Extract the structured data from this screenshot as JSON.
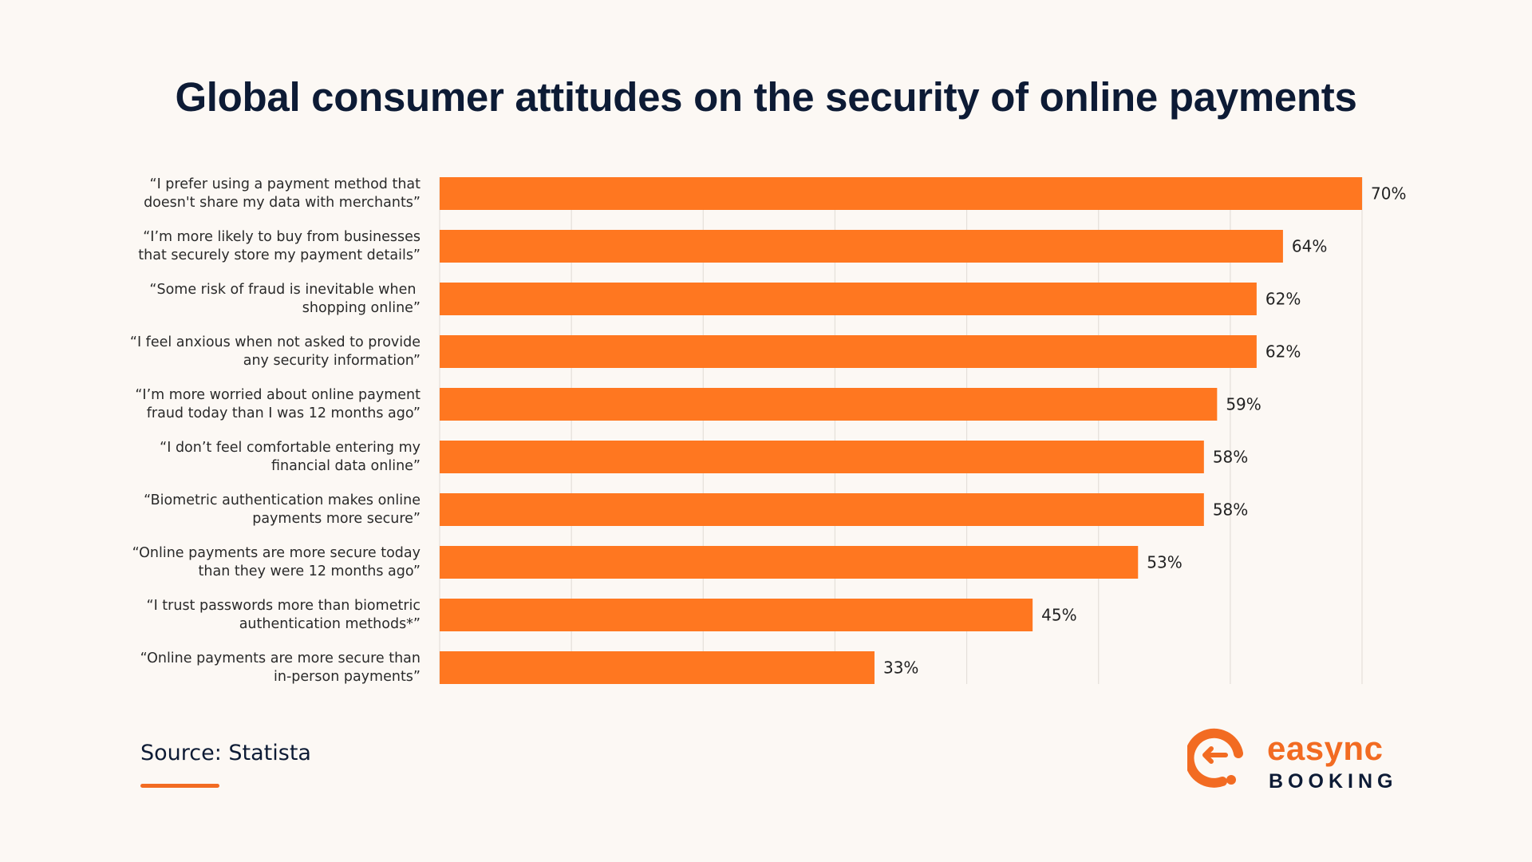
{
  "title": "Global consumer attitudes on the security of online payments",
  "source": "Source: Statista",
  "logo": {
    "word_top": "easync",
    "word_bottom": "BOOKING",
    "glyph": "e"
  },
  "colors": {
    "bar": "#ff7720",
    "accent": "#f26b22",
    "title": "#0d1b35",
    "background": "#fcf8f4"
  },
  "chart_data": {
    "type": "bar",
    "orientation": "horizontal",
    "title": "Global consumer attitudes on the security of online payments",
    "categories": [
      [
        "“I prefer using a payment method that",
        "doesn't share my data with merchants”"
      ],
      [
        "“I’m more likely to buy from businesses",
        "that securely store my payment details”"
      ],
      [
        "“Some risk of fraud is inevitable when ",
        "shopping online”"
      ],
      [
        "“I feel anxious when not asked to provide",
        "any security information”"
      ],
      [
        "“I’m more worried about online payment",
        "fraud today than I was 12 months ago”"
      ],
      [
        "“I don’t feel comfortable entering my",
        "financial data online”"
      ],
      [
        "“Biometric authentication makes online",
        "payments more secure”"
      ],
      [
        "“Online payments are more secure today",
        "than they were 12 months ago”"
      ],
      [
        "“I trust passwords more than biometric",
        "authentication methods*”"
      ],
      [
        "“Online payments are more secure than",
        "in-person payments”"
      ]
    ],
    "values": [
      70,
      64,
      62,
      62,
      59,
      58,
      58,
      53,
      45,
      33
    ],
    "value_labels": [
      "70%",
      "64%",
      "62%",
      "62%",
      "59%",
      "58%",
      "58%",
      "53%",
      "45%",
      "33%"
    ],
    "unit": "%",
    "xlim": [
      0,
      70
    ],
    "grid": true,
    "legend": "none"
  }
}
